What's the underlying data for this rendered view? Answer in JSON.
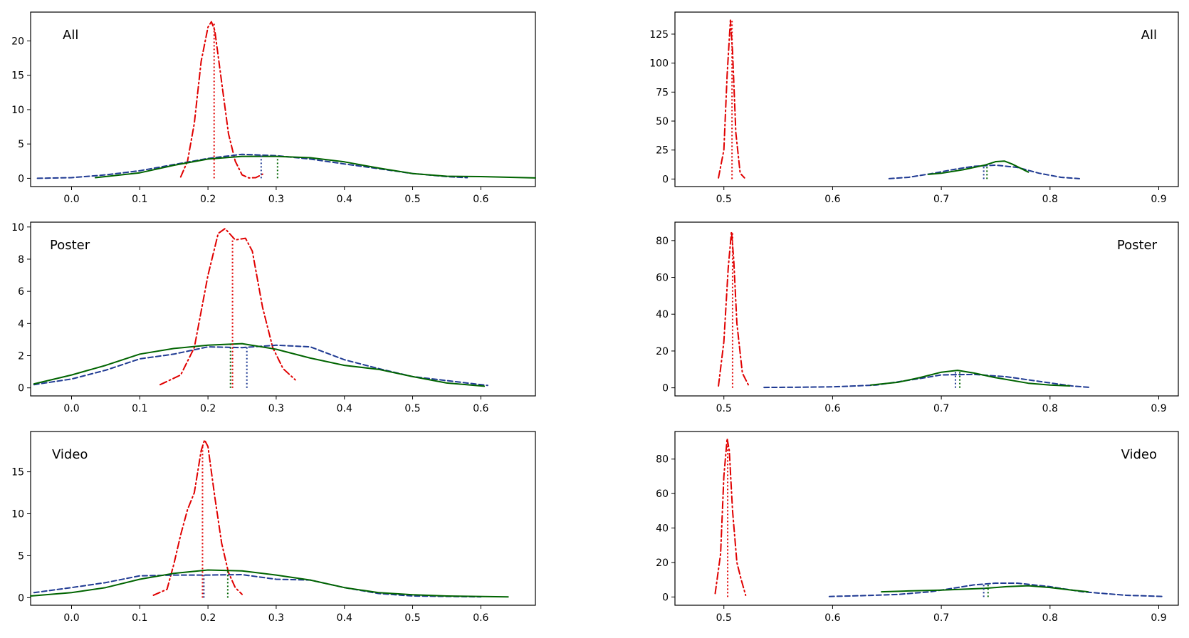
{
  "chart_data": [
    {
      "type": "line",
      "panel_label": "All",
      "label_position": "top-left",
      "xlim": [
        -0.06,
        0.68
      ],
      "ylim": [
        -1.2,
        24.2
      ],
      "xticks": [
        0.0,
        0.1,
        0.2,
        0.3,
        0.4,
        0.5,
        0.6
      ],
      "xtick_labels": [
        "0.0",
        "0.1",
        "0.2",
        "0.3",
        "0.4",
        "0.5",
        "0.6"
      ],
      "yticks": [
        0,
        5,
        10,
        15,
        20
      ],
      "ytick_labels": [
        "0",
        "5",
        "10",
        "15",
        "20"
      ],
      "grid": false,
      "series": [
        {
          "style": "dashdot",
          "color": "#e00000",
          "x": [
            0.16,
            0.17,
            0.18,
            0.19,
            0.2,
            0.205,
            0.21,
            0.22,
            0.23,
            0.24,
            0.25,
            0.26,
            0.27,
            0.28
          ],
          "y": [
            0.2,
            2.5,
            8.0,
            17.0,
            22.0,
            22.8,
            21.5,
            14.0,
            6.5,
            2.5,
            0.5,
            0.05,
            0.1,
            0.6
          ]
        },
        {
          "style": "dashed",
          "color": "#1f3a93",
          "x": [
            -0.05,
            0.0,
            0.05,
            0.1,
            0.15,
            0.2,
            0.25,
            0.3,
            0.35,
            0.4,
            0.45,
            0.5,
            0.55,
            0.58
          ],
          "y": [
            0.0,
            0.1,
            0.5,
            1.1,
            2.0,
            2.9,
            3.5,
            3.3,
            2.8,
            2.1,
            1.4,
            0.7,
            0.25,
            0.1
          ]
        },
        {
          "style": "solid",
          "color": "#006400",
          "x": [
            0.035,
            0.1,
            0.15,
            0.2,
            0.25,
            0.3,
            0.35,
            0.4,
            0.45,
            0.5,
            0.55,
            0.6,
            0.68
          ],
          "y": [
            0.1,
            0.8,
            1.9,
            2.8,
            3.2,
            3.2,
            3.0,
            2.4,
            1.5,
            0.7,
            0.3,
            0.25,
            0.05
          ]
        }
      ],
      "markers": [
        {
          "color": "#e00000",
          "x": 0.209,
          "y_top": 22.6
        },
        {
          "color": "#1f3a93",
          "x": 0.278,
          "y_top": 3.4
        },
        {
          "color": "#006400",
          "x": 0.302,
          "y_top": 3.2
        }
      ]
    },
    {
      "type": "line",
      "panel_label": "All",
      "label_position": "top-right",
      "xlim": [
        0.455,
        0.918
      ],
      "ylim": [
        -6.5,
        144
      ],
      "xticks": [
        0.5,
        0.6,
        0.7,
        0.8,
        0.9
      ],
      "xtick_labels": [
        "0.5",
        "0.6",
        "0.7",
        "0.8",
        "0.9"
      ],
      "yticks": [
        0,
        25,
        50,
        75,
        100,
        125
      ],
      "ytick_labels": [
        "0",
        "25",
        "50",
        "75",
        "100",
        "125"
      ],
      "grid": false,
      "series": [
        {
          "style": "dashdot",
          "color": "#e00000",
          "x": [
            0.495,
            0.5,
            0.503,
            0.506,
            0.508,
            0.511,
            0.515,
            0.519
          ],
          "y": [
            1,
            25,
            90,
            137,
            110,
            40,
            5,
            1
          ]
        },
        {
          "style": "dashed",
          "color": "#1f3a93",
          "x": [
            0.652,
            0.67,
            0.69,
            0.71,
            0.73,
            0.75,
            0.77,
            0.79,
            0.81,
            0.827
          ],
          "y": [
            0.3,
            1.5,
            4.5,
            8,
            11,
            12,
            10,
            5,
            1.5,
            0.3
          ]
        },
        {
          "style": "solid",
          "color": "#006400",
          "x": [
            0.688,
            0.7,
            0.72,
            0.74,
            0.75,
            0.758,
            0.765,
            0.78
          ],
          "y": [
            4,
            5,
            8,
            12,
            15,
            15.5,
            13,
            6
          ]
        }
      ],
      "markers": [
        {
          "color": "#e00000",
          "x": 0.5075,
          "y_top": 137
        },
        {
          "color": "#1f3a93",
          "x": 0.739,
          "y_top": 11.5
        },
        {
          "color": "#006400",
          "x": 0.742,
          "y_top": 12.5
        }
      ]
    },
    {
      "type": "line",
      "panel_label": "Poster",
      "label_position": "top-left",
      "xlim": [
        -0.06,
        0.68
      ],
      "ylim": [
        -0.5,
        10.3
      ],
      "xticks": [
        0.0,
        0.1,
        0.2,
        0.3,
        0.4,
        0.5,
        0.6
      ],
      "xtick_labels": [
        "0.0",
        "0.1",
        "0.2",
        "0.3",
        "0.4",
        "0.5",
        "0.6"
      ],
      "yticks": [
        0,
        2,
        4,
        6,
        8,
        10
      ],
      "ytick_labels": [
        "0",
        "2",
        "4",
        "6",
        "8",
        "10"
      ],
      "grid": false,
      "series": [
        {
          "style": "dashdot",
          "color": "#e00000",
          "x": [
            0.13,
            0.16,
            0.18,
            0.2,
            0.215,
            0.225,
            0.24,
            0.255,
            0.265,
            0.28,
            0.295,
            0.31,
            0.328
          ],
          "y": [
            0.2,
            0.8,
            2.5,
            7.0,
            9.6,
            9.9,
            9.2,
            9.3,
            8.5,
            5.0,
            2.5,
            1.2,
            0.5
          ]
        },
        {
          "style": "dashed",
          "color": "#1f3a93",
          "x": [
            -0.055,
            0.0,
            0.05,
            0.1,
            0.15,
            0.2,
            0.25,
            0.3,
            0.35,
            0.4,
            0.45,
            0.5,
            0.55,
            0.61
          ],
          "y": [
            0.2,
            0.55,
            1.1,
            1.8,
            2.1,
            2.55,
            2.5,
            2.65,
            2.55,
            1.75,
            1.2,
            0.7,
            0.45,
            0.15
          ]
        },
        {
          "style": "solid",
          "color": "#006400",
          "x": [
            -0.055,
            0.0,
            0.05,
            0.1,
            0.15,
            0.2,
            0.25,
            0.3,
            0.35,
            0.4,
            0.45,
            0.5,
            0.55,
            0.605
          ],
          "y": [
            0.25,
            0.8,
            1.4,
            2.1,
            2.45,
            2.65,
            2.75,
            2.4,
            1.85,
            1.4,
            1.15,
            0.7,
            0.3,
            0.1
          ]
        }
      ],
      "markers": [
        {
          "color": "#e00000",
          "x": 0.236,
          "y_top": 9.3
        },
        {
          "color": "#1f3a93",
          "x": 0.257,
          "y_top": 2.6
        },
        {
          "color": "#006400",
          "x": 0.233,
          "y_top": 2.75
        }
      ]
    },
    {
      "type": "line",
      "panel_label": "Poster",
      "label_position": "top-right",
      "xlim": [
        0.455,
        0.918
      ],
      "ylim": [
        -4.4,
        90
      ],
      "xticks": [
        0.5,
        0.6,
        0.7,
        0.8,
        0.9
      ],
      "xtick_labels": [
        "0.5",
        "0.6",
        "0.7",
        "0.8",
        "0.9"
      ],
      "yticks": [
        0,
        20,
        40,
        60,
        80
      ],
      "ytick_labels": [
        "0",
        "20",
        "40",
        "60",
        "80"
      ],
      "grid": false,
      "series": [
        {
          "style": "dashdot",
          "color": "#e00000",
          "x": [
            0.495,
            0.5,
            0.504,
            0.507,
            0.509,
            0.512,
            0.517,
            0.523
          ],
          "y": [
            1,
            25,
            65,
            85,
            70,
            35,
            8,
            1
          ]
        },
        {
          "style": "dashed",
          "color": "#1f3a93",
          "x": [
            0.537,
            0.56,
            0.6,
            0.64,
            0.68,
            0.7,
            0.73,
            0.76,
            0.79,
            0.82,
            0.837
          ],
          "y": [
            0.2,
            0.3,
            0.5,
            1.5,
            5,
            7,
            7.3,
            6,
            3.5,
            1,
            0.2
          ]
        },
        {
          "style": "solid",
          "color": "#006400",
          "x": [
            0.635,
            0.66,
            0.68,
            0.7,
            0.715,
            0.73,
            0.75,
            0.78,
            0.8,
            0.818
          ],
          "y": [
            1.5,
            3,
            5.5,
            8.5,
            9.5,
            8,
            5.5,
            2.5,
            1.5,
            1
          ]
        }
      ],
      "markers": [
        {
          "color": "#e00000",
          "x": 0.508,
          "y_top": 84
        },
        {
          "color": "#1f3a93",
          "x": 0.713,
          "y_top": 8.5
        },
        {
          "color": "#006400",
          "x": 0.717,
          "y_top": 9.0
        }
      ]
    },
    {
      "type": "line",
      "panel_label": "Video",
      "label_position": "top-left",
      "xlim": [
        -0.06,
        0.68
      ],
      "ylim": [
        -0.9,
        19.8
      ],
      "xticks": [
        0.0,
        0.1,
        0.2,
        0.3,
        0.4,
        0.5,
        0.6
      ],
      "xtick_labels": [
        "0.0",
        "0.1",
        "0.2",
        "0.3",
        "0.4",
        "0.5",
        "0.6"
      ],
      "yticks": [
        0,
        5,
        10,
        15
      ],
      "ytick_labels": [
        "0",
        "5",
        "10",
        "15"
      ],
      "grid": false,
      "series": [
        {
          "style": "dashdot",
          "color": "#e00000",
          "x": [
            0.12,
            0.14,
            0.15,
            0.16,
            0.17,
            0.18,
            0.19,
            0.195,
            0.2,
            0.21,
            0.22,
            0.23,
            0.24,
            0.25
          ],
          "y": [
            0.3,
            1.0,
            4.0,
            7.5,
            10.5,
            12.5,
            17.5,
            18.8,
            18.0,
            12.0,
            6.5,
            3.0,
            1.2,
            0.4
          ]
        },
        {
          "style": "dashed",
          "color": "#1f3a93",
          "x": [
            -0.055,
            0.0,
            0.05,
            0.1,
            0.15,
            0.2,
            0.25,
            0.3,
            0.35,
            0.4,
            0.45,
            0.5,
            0.55,
            0.6
          ],
          "y": [
            0.6,
            1.2,
            1.8,
            2.6,
            2.7,
            2.7,
            2.75,
            2.2,
            2.1,
            1.2,
            0.5,
            0.2,
            0.15,
            0.1
          ]
        },
        {
          "style": "solid",
          "color": "#006400",
          "x": [
            -0.06,
            0.0,
            0.05,
            0.1,
            0.15,
            0.2,
            0.25,
            0.3,
            0.35,
            0.4,
            0.45,
            0.5,
            0.55,
            0.64
          ],
          "y": [
            0.2,
            0.6,
            1.2,
            2.2,
            2.9,
            3.3,
            3.2,
            2.7,
            2.1,
            1.2,
            0.6,
            0.35,
            0.2,
            0.1
          ]
        }
      ],
      "markers": [
        {
          "color": "#e00000",
          "x": 0.192,
          "y_top": 18.2
        },
        {
          "color": "#1f3a93",
          "x": 0.194,
          "y_top": 2.7
        },
        {
          "color": "#006400",
          "x": 0.229,
          "y_top": 3.3
        }
      ]
    },
    {
      "type": "line",
      "panel_label": "Video",
      "label_position": "top-right",
      "xlim": [
        0.455,
        0.918
      ],
      "ylim": [
        -4.8,
        96
      ],
      "xticks": [
        0.5,
        0.6,
        0.7,
        0.8,
        0.9
      ],
      "xtick_labels": [
        "0.5",
        "0.6",
        "0.7",
        "0.8",
        "0.9"
      ],
      "yticks": [
        0,
        20,
        40,
        60,
        80
      ],
      "ytick_labels": [
        "0",
        "20",
        "40",
        "60",
        "80"
      ],
      "grid": false,
      "series": [
        {
          "style": "dashdot",
          "color": "#e00000",
          "x": [
            0.492,
            0.497,
            0.5,
            0.503,
            0.505,
            0.508,
            0.512,
            0.516,
            0.52
          ],
          "y": [
            2,
            25,
            70,
            92,
            85,
            50,
            20,
            10,
            1
          ]
        },
        {
          "style": "dashed",
          "color": "#1f3a93",
          "x": [
            0.597,
            0.63,
            0.66,
            0.69,
            0.71,
            0.73,
            0.75,
            0.77,
            0.8,
            0.83,
            0.87,
            0.905
          ],
          "y": [
            0.3,
            0.8,
            1.5,
            3,
            5,
            7,
            8,
            8,
            6,
            3,
            1,
            0.3
          ]
        },
        {
          "style": "solid",
          "color": "#006400",
          "x": [
            0.645,
            0.67,
            0.7,
            0.72,
            0.74,
            0.76,
            0.78,
            0.8,
            0.82,
            0.835
          ],
          "y": [
            3,
            3.5,
            4,
            4.5,
            5,
            6,
            6.5,
            5.5,
            4,
            3
          ]
        }
      ],
      "markers": [
        {
          "color": "#e00000",
          "x": 0.5035,
          "y_top": 90
        },
        {
          "color": "#1f3a93",
          "x": 0.739,
          "y_top": 7
        },
        {
          "color": "#006400",
          "x": 0.743,
          "y_top": 7.2
        }
      ]
    }
  ]
}
